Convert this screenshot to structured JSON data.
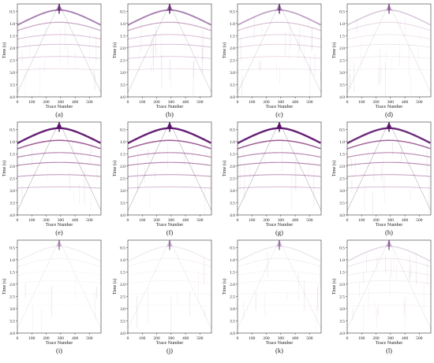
{
  "figure": {
    "panel_labels": [
      "(a)",
      "(b)",
      "(c)",
      "(d)",
      "(e)",
      "(f)",
      "(g)",
      "(h)",
      "(i)",
      "(j)",
      "(k)",
      "(l)"
    ],
    "x_axis_label": "Trace  Number",
    "y_axis_label": "Time (s)",
    "x_ticks": [
      "0",
      "100",
      "200",
      "300",
      "400",
      "500"
    ],
    "y_ticks": [
      "0.5",
      "1.0",
      "1.5",
      "2.0",
      "2.5",
      "3.0",
      "3.5",
      "4.0"
    ],
    "colors": {
      "event": "#7a1f6e",
      "event_strong": "#5a0f6a",
      "frame": "#333333"
    }
  },
  "chart_data": {
    "type": "heatmap",
    "x_axis": {
      "label": "Trace  Number",
      "range": [
        0,
        580
      ],
      "ticks": [
        0,
        100,
        200,
        300,
        400,
        500
      ]
    },
    "y_axis": {
      "label": "Time (s)",
      "range": [
        0.2,
        4.0
      ],
      "ticks": [
        0.5,
        1.0,
        1.5,
        2.0,
        2.5,
        3.0,
        3.5,
        4.0
      ],
      "inverted": true
    },
    "source_trace": 290,
    "panels": [
      {
        "label": "(a)",
        "intensity": 0.55,
        "noise": 0.25
      },
      {
        "label": "(b)",
        "intensity": 0.55,
        "noise": 0.25
      },
      {
        "label": "(c)",
        "intensity": 0.4,
        "noise": 0.3
      },
      {
        "label": "(d)",
        "intensity": 0.22,
        "noise": 0.25
      },
      {
        "label": "(e)",
        "intensity": 1.0,
        "noise": 0.15
      },
      {
        "label": "(f)",
        "intensity": 1.0,
        "noise": 0.15
      },
      {
        "label": "(g)",
        "intensity": 1.0,
        "noise": 0.15
      },
      {
        "label": "(h)",
        "intensity": 0.95,
        "noise": 0.2
      },
      {
        "label": "(i)",
        "intensity": 0.05,
        "noise": 0.05
      },
      {
        "label": "(j)",
        "intensity": 0.06,
        "noise": 0.06
      },
      {
        "label": "(k)",
        "intensity": 0.08,
        "noise": 0.12
      },
      {
        "label": "(l)",
        "intensity": 0.15,
        "noise": 0.35
      }
    ]
  }
}
